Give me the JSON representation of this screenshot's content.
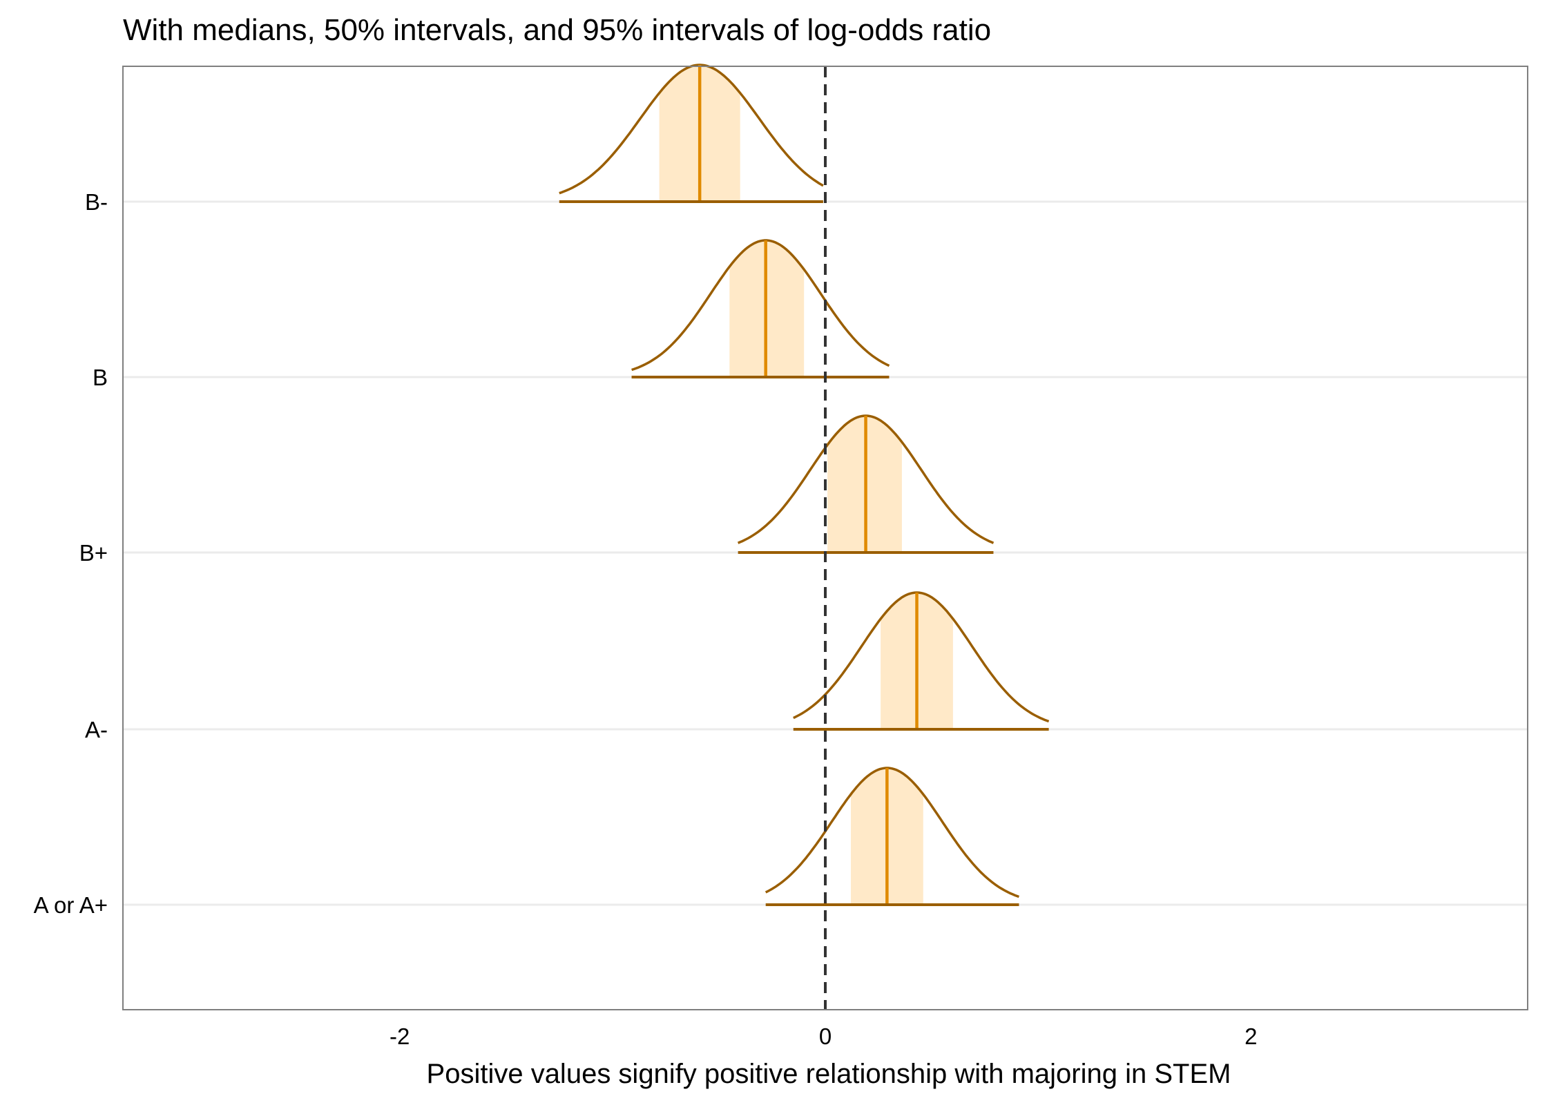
{
  "chart_data": {
    "type": "ridgeline",
    "title": "With medians, 50% intervals, and 95% intervals of log-odds ratio",
    "xlabel": "Positive values signify positive relationship with majoring in STEM",
    "ylabel": "",
    "xlim": [
      -3.3,
      3.3
    ],
    "x_ticks": [
      -2,
      0,
      2
    ],
    "x_tick_labels": [
      "-2",
      "0",
      "2"
    ],
    "reference_line": 0,
    "grid": "horizontal",
    "categories": [
      "B-",
      "B",
      "B+",
      "A-",
      "A or A+"
    ],
    "series": [
      {
        "category": "B-",
        "median": -0.59,
        "q25": -0.78,
        "q75": -0.4,
        "q025": -1.25,
        "q975": -0.01,
        "sd": 0.28
      },
      {
        "category": "B",
        "median": -0.28,
        "q25": -0.45,
        "q75": -0.1,
        "q025": -0.91,
        "q975": 0.3,
        "sd": 0.26
      },
      {
        "category": "B+",
        "median": 0.19,
        "q25": 0.01,
        "q75": 0.36,
        "q025": -0.41,
        "q975": 0.79,
        "sd": 0.26
      },
      {
        "category": "A-",
        "median": 0.43,
        "q25": 0.26,
        "q75": 0.6,
        "q025": -0.15,
        "q975": 1.05,
        "sd": 0.26
      },
      {
        "category": "A or A+",
        "median": 0.29,
        "q25": 0.12,
        "q75": 0.46,
        "q025": -0.28,
        "q975": 0.91,
        "sd": 0.26
      }
    ],
    "colors": {
      "density_line": "#9a5e00",
      "interval_50_fill": "#ffe9c8",
      "median_line": "#e08a00",
      "interval_95_line": "#9a5e00",
      "reference_line": "#333333",
      "grid": "#ebebeb",
      "panel_border": "#7f7f7f"
    }
  }
}
